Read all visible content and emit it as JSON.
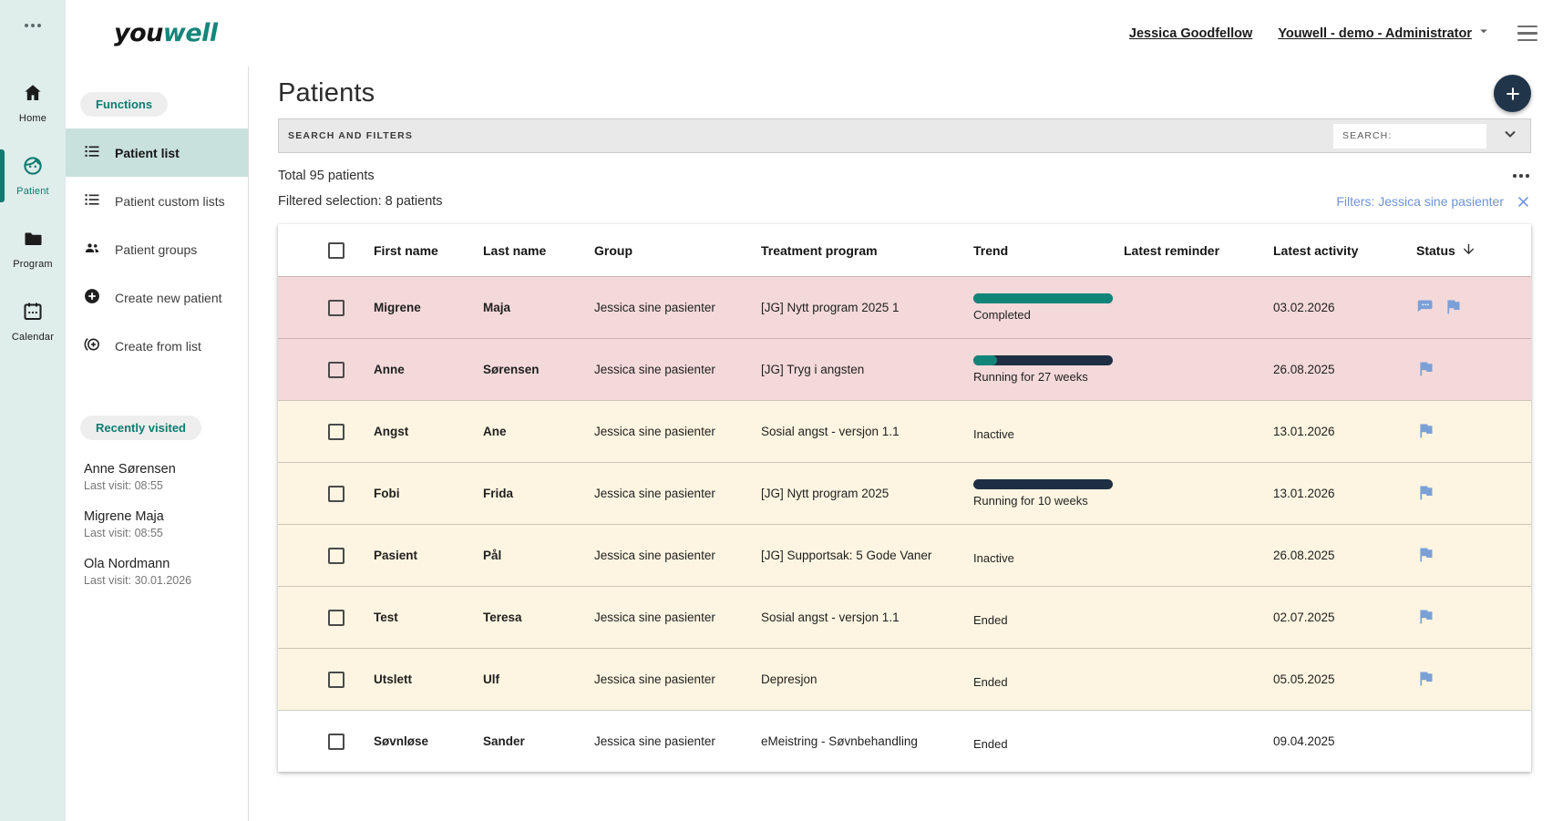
{
  "brand": {
    "logo_part1": "you",
    "logo_part2": "well"
  },
  "header": {
    "user_name": "Jessica Goodfellow",
    "org_switcher": "Youwell - demo - Administrator"
  },
  "rail": {
    "items": [
      {
        "label": "Home",
        "icon": "home-icon",
        "active": false
      },
      {
        "label": "Patient",
        "icon": "patient-icon",
        "active": true
      },
      {
        "label": "Program",
        "icon": "program-icon",
        "active": false
      },
      {
        "label": "Calendar",
        "icon": "calendar-icon",
        "active": false
      }
    ]
  },
  "sidebar": {
    "functions_title": "Functions",
    "functions": [
      {
        "label": "Patient list",
        "icon": "list-icon",
        "active": true
      },
      {
        "label": "Patient custom lists",
        "icon": "list-icon",
        "active": false
      },
      {
        "label": "Patient groups",
        "icon": "people-icon",
        "active": false
      },
      {
        "label": "Create new patient",
        "icon": "add-circle-icon",
        "active": false
      },
      {
        "label": "Create from list",
        "icon": "add-from-list-icon",
        "active": false
      }
    ],
    "recent_title": "Recently visited",
    "recent": [
      {
        "name": "Anne Sørensen",
        "last_visit": "Last visit: 08:55"
      },
      {
        "name": "Migrene Maja",
        "last_visit": "Last visit: 08:55"
      },
      {
        "name": "Ola Nordmann",
        "last_visit": "Last visit: 30.01.2026"
      }
    ]
  },
  "main": {
    "title": "Patients",
    "add_button_label": "+",
    "search_panel_label": "SEARCH AND FILTERS",
    "search_input_label": "SEARCH:",
    "total_text": "Total 95 patients",
    "filtered_text": "Filtered selection: 8 patients",
    "filter_chip": "Filters: Jessica sine pasienter"
  },
  "table": {
    "columns": [
      "First name",
      "Last name",
      "Group",
      "Treatment program",
      "Trend",
      "Latest reminder",
      "Latest activity",
      "Status"
    ],
    "sorted_by": "Status",
    "sort_direction": "down",
    "rows": [
      {
        "first": "Migrene",
        "last": "Maja",
        "group": "Jessica sine pasienter",
        "program": "[JG] Nytt program 2025 1",
        "trend_label": "Completed",
        "trend_bar": true,
        "trend_progress": 1,
        "reminder": "",
        "activity": "03.02.2026",
        "status_icons": [
          "chat",
          "flag"
        ],
        "row_color": "pink"
      },
      {
        "first": "Anne",
        "last": "Sørensen",
        "group": "Jessica sine pasienter",
        "program": "[JG] Tryg i angsten",
        "trend_label": "Running for 27 weeks",
        "trend_bar": true,
        "trend_progress": 0.17,
        "reminder": "",
        "activity": "26.08.2025",
        "status_icons": [
          "flag"
        ],
        "row_color": "pink"
      },
      {
        "first": "Angst",
        "last": "Ane",
        "group": "Jessica sine pasienter",
        "program": "Sosial angst - versjon 1.1",
        "trend_label": "Inactive",
        "trend_bar": false,
        "trend_progress": 0,
        "reminder": "",
        "activity": "13.01.2026",
        "status_icons": [
          "flag"
        ],
        "row_color": "cream"
      },
      {
        "first": "Fobi",
        "last": "Frida",
        "group": "Jessica sine pasienter",
        "program": "[JG] Nytt program 2025",
        "trend_label": "Running for 10 weeks",
        "trend_bar": true,
        "trend_progress": 0,
        "reminder": "",
        "activity": "13.01.2026",
        "status_icons": [
          "flag"
        ],
        "row_color": "cream"
      },
      {
        "first": "Pasient",
        "last": "Pål",
        "group": "Jessica sine pasienter",
        "program": "[JG] Supportsak: 5 Gode Vaner",
        "trend_label": "Inactive",
        "trend_bar": false,
        "trend_progress": 0,
        "reminder": "",
        "activity": "26.08.2025",
        "status_icons": [
          "flag"
        ],
        "row_color": "cream"
      },
      {
        "first": "Test",
        "last": "Teresa",
        "group": "Jessica sine pasienter",
        "program": "Sosial angst - versjon 1.1",
        "trend_label": "Ended",
        "trend_bar": false,
        "trend_progress": 0,
        "reminder": "",
        "activity": "02.07.2025",
        "status_icons": [
          "flag"
        ],
        "row_color": "cream"
      },
      {
        "first": "Utslett",
        "last": "Ulf",
        "group": "Jessica sine pasienter",
        "program": "Depresjon",
        "trend_label": "Ended",
        "trend_bar": false,
        "trend_progress": 0,
        "reminder": "",
        "activity": "05.05.2025",
        "status_icons": [
          "flag"
        ],
        "row_color": "cream"
      },
      {
        "first": "Søvnløse",
        "last": "Sander",
        "group": "Jessica sine pasienter",
        "program": "eMeistring - Søvnbehandling",
        "trend_label": "Ended",
        "trend_bar": false,
        "trend_progress": 0,
        "reminder": "",
        "activity": "09.04.2025",
        "status_icons": [],
        "row_color": "white"
      }
    ]
  },
  "colors": {
    "accent_teal": "#0e7c70",
    "trend_teal": "#12857a",
    "trend_navy": "#1e2f43",
    "fab_navy": "#20354a",
    "rail_bg": "#dfedeb",
    "row_pink": "#f4d9da",
    "row_cream": "#fdf5e1",
    "filter_blue": "#6d93d8",
    "flag_blue": "#7ba0d8"
  }
}
